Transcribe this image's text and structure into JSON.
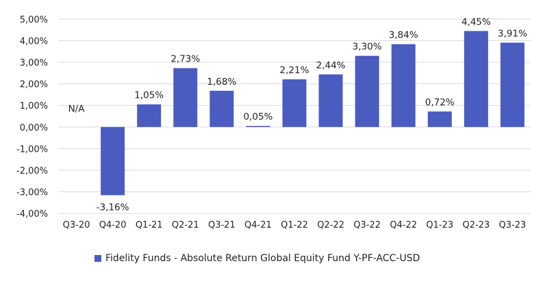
{
  "chart_data": {
    "type": "bar",
    "categories": [
      "Q3-20",
      "Q4-20",
      "Q1-21",
      "Q2-21",
      "Q3-21",
      "Q4-21",
      "Q1-22",
      "Q2-22",
      "Q3-22",
      "Q4-22",
      "Q1-23",
      "Q2-23",
      "Q3-23"
    ],
    "series": [
      {
        "name": "Fidelity Funds - Absolute Return Global Equity Fund Y-PF-ACC-USD",
        "values": [
          null,
          -3.16,
          1.05,
          2.73,
          1.68,
          0.05,
          2.21,
          2.44,
          3.3,
          3.84,
          0.72,
          4.45,
          3.91
        ],
        "data_labels": [
          "N/A",
          "-3,16%",
          "1,05%",
          "2,73%",
          "1,68%",
          "0,05%",
          "2,21%",
          "2,44%",
          "3,30%",
          "3,84%",
          "0,72%",
          "4,45%",
          "3,91%"
        ]
      }
    ],
    "yticks": [
      "5,00%",
      "4,00%",
      "3,00%",
      "2,00%",
      "1,00%",
      "0,00%",
      "-1,00%",
      "-2,00%",
      "-3,00%",
      "-4,00%"
    ],
    "ylim": [
      -4,
      5
    ],
    "grid": true,
    "legend": "bottom",
    "colors": {
      "bar": "#4a5cc0",
      "grid": "#d9d9d9"
    }
  }
}
